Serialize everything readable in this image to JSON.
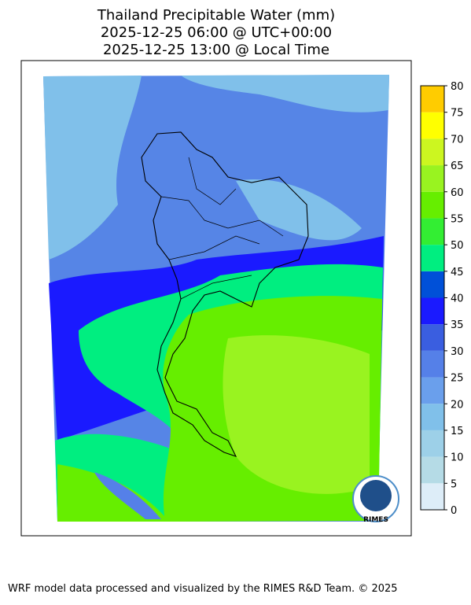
{
  "title": [
    "Thailand Precipitable Water (mm)",
    "2025-12-25 06:00 @ UTC+00:00",
    "2025-12-25 13:00 @ Local Time"
  ],
  "colorbar": {
    "lim": [
      0,
      80
    ],
    "ticks": [
      0,
      5,
      10,
      15,
      20,
      25,
      30,
      35,
      40,
      45,
      50,
      55,
      60,
      65,
      70,
      75,
      80
    ],
    "colors": [
      "#ddedf8",
      "#b5dbe6",
      "#9dd0e8",
      "#80c0ea",
      "#6a9fec",
      "#5580e8",
      "#3a5ee0",
      "#1a1aff",
      "#0050d8",
      "#00ee80",
      "#33ee33",
      "#66ee00",
      "#99f320",
      "#ccf620",
      "#ffff00",
      "#ffcc00"
    ]
  },
  "logo": "RIMES",
  "footer": "WRF model data processed and visualized by the RIMES R&D Team. © 2025"
}
